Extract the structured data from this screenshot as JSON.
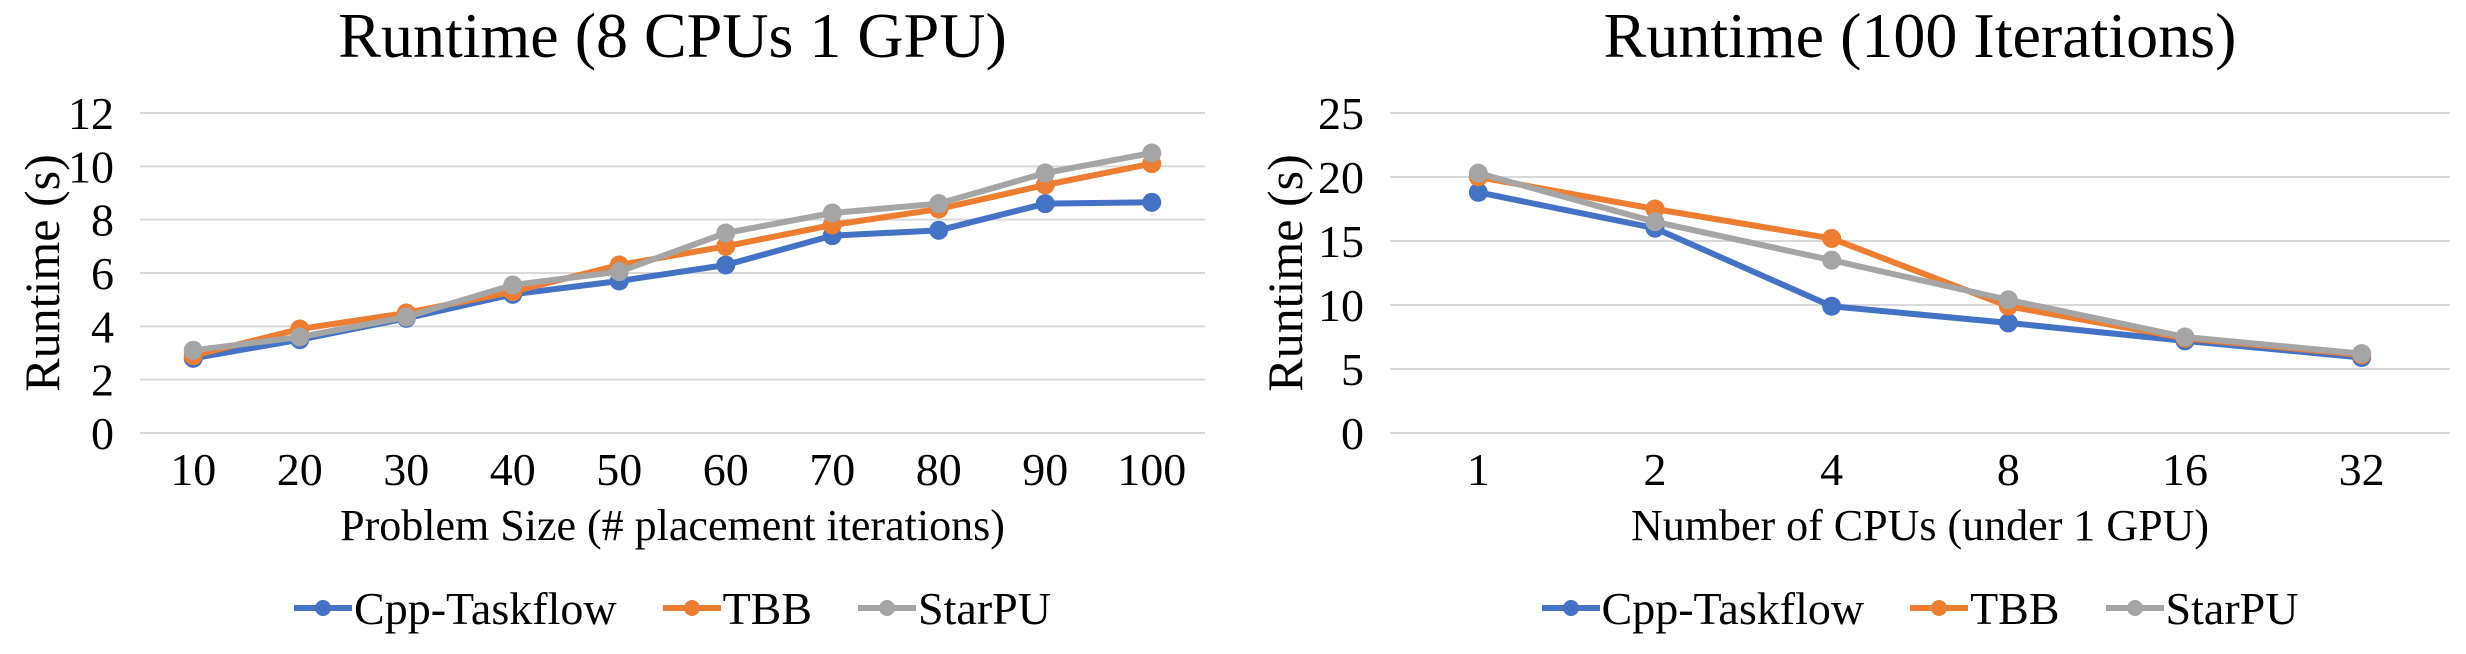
{
  "page": {
    "background": "#ffffff",
    "text_color": "#000000",
    "gridline_color": "#D9D9D9"
  },
  "chart_data": [
    {
      "type": "line",
      "title": "Runtime (8 CPUs 1 GPU)",
      "xlabel": "Problem Size (# placement iterations)",
      "ylabel": "Runtime (s)",
      "categories": [
        "10",
        "20",
        "30",
        "40",
        "50",
        "60",
        "70",
        "80",
        "90",
        "100"
      ],
      "ylim": [
        0,
        12
      ],
      "yticks": [
        0,
        2,
        4,
        6,
        8,
        10,
        12
      ],
      "grid": true,
      "legend_position": "bottom",
      "series": [
        {
          "name": "Cpp-Taskflow",
          "color": "#4472C4",
          "values": [
            2.8,
            3.5,
            4.3,
            5.2,
            5.7,
            6.3,
            7.4,
            7.6,
            8.6,
            8.65
          ]
        },
        {
          "name": "TBB",
          "color": "#ED7D31",
          "values": [
            2.9,
            3.9,
            4.5,
            5.3,
            6.3,
            7.0,
            7.8,
            8.4,
            9.3,
            10.1
          ]
        },
        {
          "name": "StarPU",
          "color": "#A5A5A5",
          "values": [
            3.1,
            3.6,
            4.35,
            5.55,
            6.05,
            7.5,
            8.25,
            8.6,
            9.75,
            10.5
          ]
        }
      ]
    },
    {
      "type": "line",
      "title": "Runtime (100 Iterations)",
      "xlabel": "Number of CPUs (under 1 GPU)",
      "ylabel": "Runtime (s)",
      "categories": [
        "1",
        "2",
        "4",
        "8",
        "16",
        "32"
      ],
      "ylim": [
        0,
        25
      ],
      "yticks": [
        0,
        5,
        10,
        15,
        20,
        25
      ],
      "grid": true,
      "legend_position": "bottom",
      "series": [
        {
          "name": "Cpp-Taskflow",
          "color": "#4472C4",
          "values": [
            18.8,
            16.0,
            9.9,
            8.6,
            7.2,
            5.9
          ]
        },
        {
          "name": "TBB",
          "color": "#ED7D31",
          "values": [
            20.0,
            17.5,
            15.2,
            9.9,
            7.4,
            6.1
          ]
        },
        {
          "name": "StarPU",
          "color": "#A5A5A5",
          "values": [
            20.3,
            16.5,
            13.5,
            10.4,
            7.5,
            6.2
          ]
        }
      ]
    }
  ]
}
